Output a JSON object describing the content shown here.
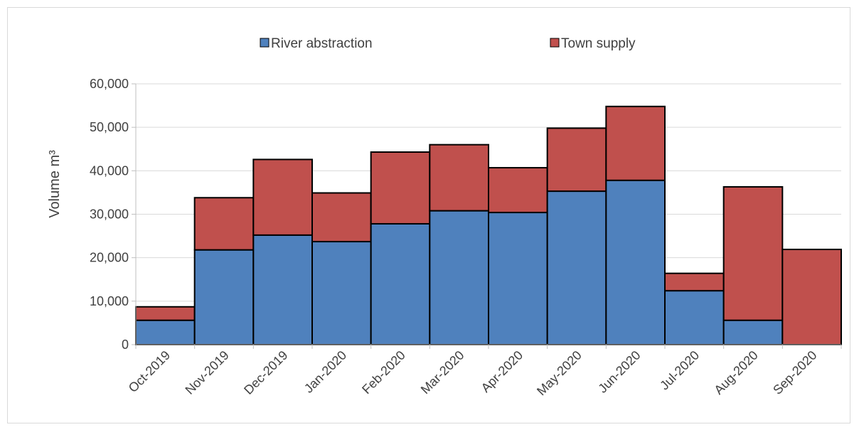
{
  "chart_data": {
    "type": "bar",
    "stacked": true,
    "categories": [
      "Oct-2019",
      "Nov-2019",
      "Dec-2019",
      "Jan-2020",
      "Feb-2020",
      "Mar-2020",
      "Apr-2020",
      "May-2020",
      "Jun-2020",
      "Jul-2020",
      "Aug-2020",
      "Sep-2020"
    ],
    "series": [
      {
        "name": "River abstraction",
        "color": "#4f81bd",
        "values": [
          5600,
          21800,
          25200,
          23700,
          27800,
          30800,
          30400,
          35300,
          37800,
          12400,
          5600,
          0
        ]
      },
      {
        "name": "Town supply",
        "color": "#c0504d",
        "values": [
          3100,
          12000,
          17400,
          11200,
          16500,
          15200,
          10300,
          14500,
          17000,
          4000,
          30700,
          21900
        ]
      }
    ],
    "ylabel": "Volume m³",
    "ylim": [
      0,
      60000
    ],
    "yticks": [
      "0",
      "10,000",
      "20,000",
      "30,000",
      "40,000",
      "50,000",
      "60,000"
    ],
    "grid": true,
    "legend_position": "top"
  }
}
